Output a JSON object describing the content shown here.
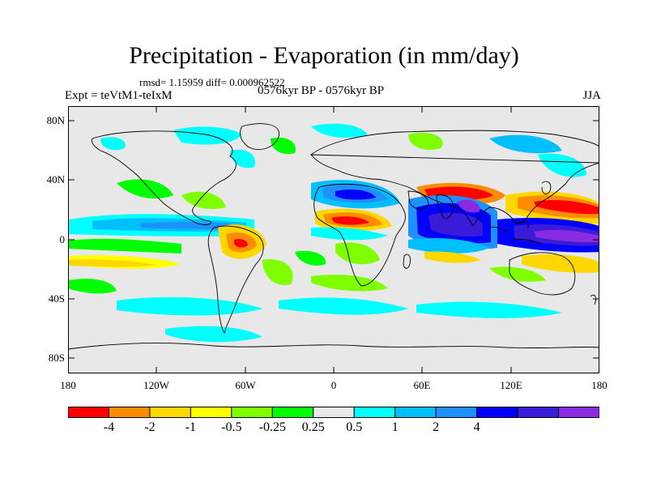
{
  "title": "Precipitation - Evaporation (in mm/day)",
  "stats": "rmsd= 1.15959 diff= 0.000962522",
  "experiment": "Expt = teVtM1-teIxM",
  "period": "0576kyr BP - 0576kyr BP",
  "season": "JJA",
  "lat_labels": [
    "80N",
    "40N",
    "0",
    "40S",
    "80S"
  ],
  "lon_labels": [
    "180",
    "120W",
    "60W",
    "0",
    "60E",
    "120E",
    "180"
  ],
  "colorbar": {
    "labels": [
      "-4",
      "-2",
      "-1",
      "-0.5",
      "-0.25",
      "0.25",
      "0.5",
      "1",
      "2",
      "4"
    ],
    "colors": [
      "#ff0000",
      "#ff8c00",
      "#ffd700",
      "#ffff00",
      "#7fff00",
      "#00ff00",
      "#e8e8e8",
      "#00ffff",
      "#00bfff",
      "#1e90ff",
      "#0000ff",
      "#3a1bd8",
      "#8a2be2"
    ]
  }
}
